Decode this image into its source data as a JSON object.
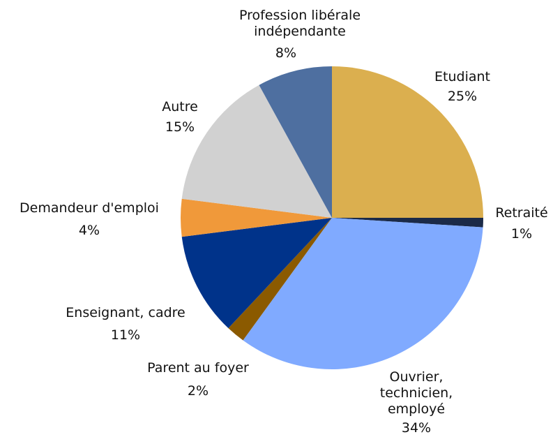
{
  "chart_data": {
    "type": "pie",
    "categories": [
      "Etudiant",
      "Retraité",
      "Ouvrier,\ntechnicien,\nemployé",
      "Parent au foyer",
      "Enseignant, cadre",
      "Demandeur d'emploi",
      "Autre",
      "Profession libérale\nindépendante"
    ],
    "values": [
      25,
      1,
      34,
      2,
      11,
      4,
      15,
      8
    ],
    "value_labels": [
      "25%",
      "1%",
      "34%",
      "2%",
      "11%",
      "4%",
      "15%",
      "8%"
    ],
    "colors": [
      "#dbaf4f",
      "#1b2a48",
      "#80aaff",
      "#8b5a00",
      "#00338a",
      "#f0993a",
      "#d1d1d1",
      "#4e6fa0"
    ]
  }
}
